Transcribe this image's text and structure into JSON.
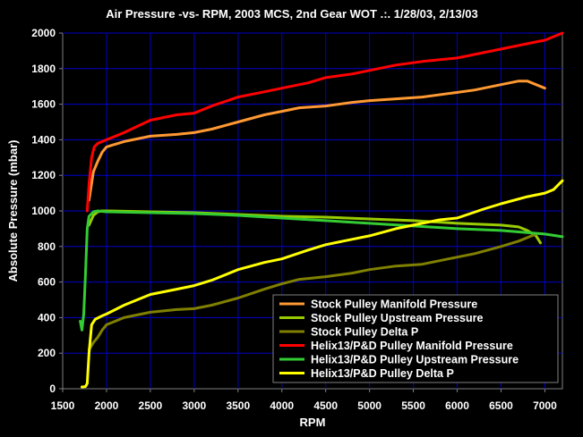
{
  "chart_data": {
    "type": "line",
    "title": "Air Pressure -vs- RPM, 2003 MCS, 2nd Gear WOT .:. 1/28/03, 2/13/03",
    "xlabel": "RPM",
    "ylabel": "Absolute Pressure (mbar)",
    "xlim": [
      1500,
      7200
    ],
    "ylim": [
      0,
      2000
    ],
    "x_ticks": [
      1500,
      2000,
      2500,
      3000,
      3500,
      4000,
      4500,
      5000,
      5500,
      6000,
      6500,
      7000
    ],
    "y_ticks": [
      0,
      200,
      400,
      600,
      800,
      1000,
      1200,
      1400,
      1600,
      1800,
      2000
    ],
    "grid": true,
    "legend_position": "bottom-right",
    "series": [
      {
        "name": "Stock Pulley Manifold Pressure",
        "color": "#FF9933",
        "points": [
          [
            1800,
            1060
          ],
          [
            1850,
            1220
          ],
          [
            1900,
            1280
          ],
          [
            1950,
            1330
          ],
          [
            2000,
            1360
          ],
          [
            2200,
            1390
          ],
          [
            2500,
            1420
          ],
          [
            2800,
            1430
          ],
          [
            3000,
            1440
          ],
          [
            3200,
            1460
          ],
          [
            3500,
            1500
          ],
          [
            3800,
            1540
          ],
          [
            4000,
            1560
          ],
          [
            4200,
            1580
          ],
          [
            4500,
            1590
          ],
          [
            4800,
            1610
          ],
          [
            5000,
            1620
          ],
          [
            5300,
            1630
          ],
          [
            5600,
            1640
          ],
          [
            5900,
            1660
          ],
          [
            6200,
            1680
          ],
          [
            6500,
            1710
          ],
          [
            6700,
            1730
          ],
          [
            6800,
            1730
          ],
          [
            6900,
            1710
          ],
          [
            7000,
            1690
          ]
        ]
      },
      {
        "name": "Stock Pulley Upstream Pressure",
        "color": "#99CC00",
        "points": [
          [
            1800,
            920
          ],
          [
            1850,
            975
          ],
          [
            1900,
            995
          ],
          [
            1950,
            1000
          ],
          [
            2000,
            1000
          ],
          [
            2500,
            995
          ],
          [
            3000,
            990
          ],
          [
            3500,
            980
          ],
          [
            4000,
            970
          ],
          [
            4500,
            965
          ],
          [
            5000,
            955
          ],
          [
            5500,
            945
          ],
          [
            6000,
            930
          ],
          [
            6500,
            920
          ],
          [
            6700,
            910
          ],
          [
            6800,
            890
          ],
          [
            6900,
            860
          ],
          [
            6950,
            820
          ]
        ]
      },
      {
        "name": "Stock Pulley Delta P",
        "color": "#808000",
        "points": [
          [
            1800,
            220
          ],
          [
            1850,
            260
          ],
          [
            1900,
            290
          ],
          [
            1950,
            330
          ],
          [
            2000,
            360
          ],
          [
            2200,
            400
          ],
          [
            2500,
            430
          ],
          [
            2800,
            445
          ],
          [
            3000,
            450
          ],
          [
            3200,
            470
          ],
          [
            3500,
            510
          ],
          [
            3800,
            560
          ],
          [
            4000,
            590
          ],
          [
            4200,
            615
          ],
          [
            4500,
            630
          ],
          [
            4800,
            650
          ],
          [
            5000,
            670
          ],
          [
            5300,
            690
          ],
          [
            5600,
            700
          ],
          [
            5900,
            730
          ],
          [
            6200,
            760
          ],
          [
            6500,
            800
          ],
          [
            6700,
            830
          ],
          [
            6800,
            850
          ],
          [
            6900,
            870
          ]
        ]
      },
      {
        "name": "Helix13/P&D Pulley Manifold Pressure",
        "color": "#FF0000",
        "points": [
          [
            1780,
            1000
          ],
          [
            1800,
            1150
          ],
          [
            1830,
            1300
          ],
          [
            1860,
            1360
          ],
          [
            1900,
            1380
          ],
          [
            2000,
            1400
          ],
          [
            2200,
            1440
          ],
          [
            2500,
            1510
          ],
          [
            2800,
            1540
          ],
          [
            3000,
            1550
          ],
          [
            3200,
            1590
          ],
          [
            3500,
            1640
          ],
          [
            3800,
            1670
          ],
          [
            4000,
            1690
          ],
          [
            4300,
            1720
          ],
          [
            4500,
            1750
          ],
          [
            4800,
            1770
          ],
          [
            5000,
            1790
          ],
          [
            5300,
            1820
          ],
          [
            5600,
            1840
          ],
          [
            6000,
            1860
          ],
          [
            6300,
            1890
          ],
          [
            6600,
            1920
          ],
          [
            6900,
            1950
          ],
          [
            7000,
            1960
          ],
          [
            7100,
            1980
          ],
          [
            7200,
            2000
          ]
        ]
      },
      {
        "name": "Helix13/P&D Pulley Upstream Pressure",
        "color": "#33CC33",
        "points": [
          [
            1700,
            380
          ],
          [
            1720,
            330
          ],
          [
            1740,
            420
          ],
          [
            1760,
            650
          ],
          [
            1780,
            900
          ],
          [
            1800,
            970
          ],
          [
            1850,
            995
          ],
          [
            1900,
            1000
          ],
          [
            2000,
            995
          ],
          [
            2500,
            990
          ],
          [
            3000,
            985
          ],
          [
            3500,
            975
          ],
          [
            4000,
            960
          ],
          [
            4500,
            945
          ],
          [
            5000,
            930
          ],
          [
            5500,
            915
          ],
          [
            6000,
            900
          ],
          [
            6500,
            890
          ],
          [
            7000,
            870
          ],
          [
            7200,
            855
          ]
        ]
      },
      {
        "name": "Helix13/P&D Pulley Delta P",
        "color": "#FFFF00",
        "points": [
          [
            1720,
            10
          ],
          [
            1760,
            12
          ],
          [
            1780,
            30
          ],
          [
            1800,
            200
          ],
          [
            1830,
            360
          ],
          [
            1870,
            390
          ],
          [
            1950,
            410
          ],
          [
            2000,
            420
          ],
          [
            2200,
            470
          ],
          [
            2500,
            530
          ],
          [
            2800,
            560
          ],
          [
            3000,
            580
          ],
          [
            3200,
            610
          ],
          [
            3500,
            670
          ],
          [
            3800,
            710
          ],
          [
            4000,
            730
          ],
          [
            4300,
            780
          ],
          [
            4500,
            810
          ],
          [
            4800,
            840
          ],
          [
            5000,
            860
          ],
          [
            5300,
            900
          ],
          [
            5600,
            930
          ],
          [
            5800,
            950
          ],
          [
            6000,
            960
          ],
          [
            6300,
            1010
          ],
          [
            6500,
            1040
          ],
          [
            6800,
            1080
          ],
          [
            7000,
            1100
          ],
          [
            7100,
            1120
          ],
          [
            7200,
            1170
          ]
        ]
      }
    ]
  }
}
